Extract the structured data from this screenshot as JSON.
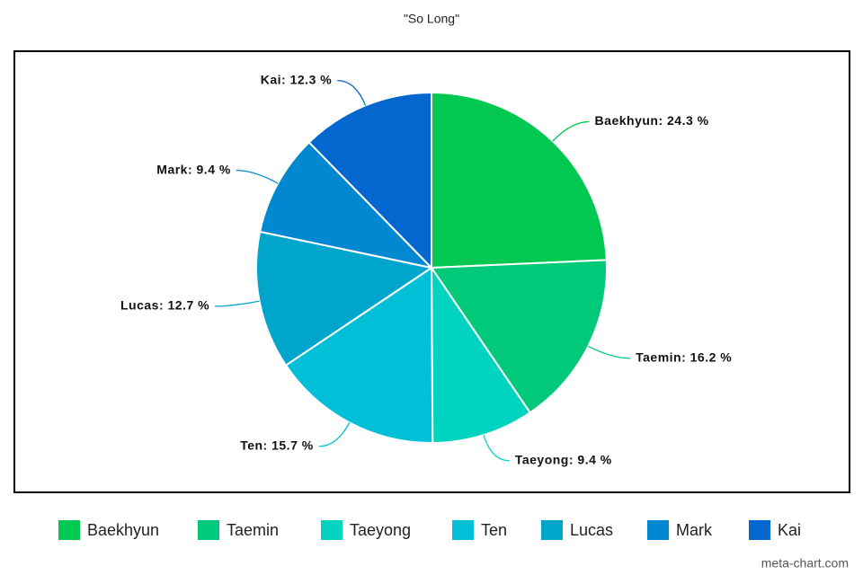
{
  "chart_data": {
    "type": "pie",
    "title": "\"So Long\"",
    "categories": [
      "Baekhyun",
      "Taemin",
      "Taeyong",
      "Ten",
      "Lucas",
      "Mark",
      "Kai"
    ],
    "values": [
      24.3,
      16.2,
      9.4,
      15.7,
      12.7,
      9.4,
      12.3
    ],
    "value_labels": [
      "Baekhyun: 24.3 %",
      "Taemin: 16.2 %",
      "Taeyong: 9.4 %",
      "Ten: 15.7 %",
      "Lucas: 12.7 %",
      "Mark: 9.4 %",
      "Kai: 12.3 %"
    ],
    "colors": [
      "#02c852",
      "#00c97a",
      "#00d4c0",
      "#00bfd6",
      "#00a5cc",
      "#0288d1",
      "#0466cf"
    ],
    "legend": "bottom",
    "watermark": "meta-chart.com"
  }
}
